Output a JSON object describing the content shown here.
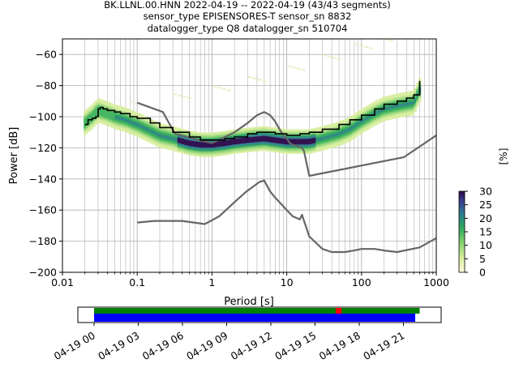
{
  "header": {
    "line1": "BK.LLNL.00.HNN   2022-04-19 -- 2022-04-19  (43/43 segments)",
    "line2": "sensor_type EPISENSORES-T sensor_sn 8832",
    "line3": "datalogger_type Q8 datalogger_sn 510704"
  },
  "colors": {
    "median": "#000000",
    "noise_models": "#666666",
    "availability_data": "#0000ff",
    "availability_ok": "#008000",
    "availability_gap": "#ff0000"
  },
  "chart_data": [
    {
      "type": "heatmap",
      "xlabel": "Period [s]",
      "ylabel": "Power [dB]",
      "x_scale": "log",
      "xlim": [
        0.01,
        1000
      ],
      "ylim": [
        -200,
        -50
      ],
      "x_ticks": [
        "0.01",
        "0.1",
        "1",
        "10",
        "100",
        "1000"
      ],
      "y_ticks": [
        "−200",
        "−180",
        "−160",
        "−140",
        "−120",
        "−100",
        "−80",
        "−60"
      ],
      "grid": true,
      "colorbar": {
        "label": "[%]",
        "range": [
          0,
          30
        ],
        "ticks": [
          "0",
          "5",
          "10",
          "15",
          "20",
          "25",
          "30"
        ],
        "colormap": "light-yellow-green-blue-purple"
      },
      "median": {
        "x": [
          0.02,
          0.022,
          0.025,
          0.028,
          0.03,
          0.032,
          0.035,
          0.04,
          0.05,
          0.06,
          0.08,
          0.1,
          0.15,
          0.2,
          0.3,
          0.5,
          0.7,
          1,
          1.5,
          2,
          3,
          4,
          5,
          7,
          10,
          15,
          20,
          30,
          50,
          70,
          100,
          150,
          200,
          300,
          400,
          500,
          600
        ],
        "y": [
          -105,
          -102,
          -101,
          -100,
          -95,
          -94,
          -95,
          -96,
          -97,
          -98,
          -100,
          -101,
          -104,
          -107,
          -110,
          -113,
          -115,
          -115,
          -114,
          -113,
          -111,
          -110,
          -110,
          -111,
          -112,
          -111,
          -110,
          -108,
          -105,
          -102,
          -99,
          -95,
          -92,
          -90,
          -88,
          -86,
          -77
        ]
      },
      "heatmap_ridge": {
        "x": [
          0.02,
          0.025,
          0.03,
          0.04,
          0.05,
          0.07,
          0.1,
          0.15,
          0.2,
          0.3,
          0.5,
          0.7,
          1,
          1.5,
          2,
          3,
          5,
          7,
          10,
          15,
          20,
          30,
          50,
          70,
          100,
          150,
          200,
          300,
          500,
          600
        ],
        "y": [
          -104,
          -100,
          -96,
          -98,
          -100,
          -102,
          -105,
          -109,
          -112,
          -114,
          -117,
          -118,
          -118,
          -117,
          -116,
          -115,
          -114,
          -115,
          -116,
          -116,
          -116,
          -114,
          -111,
          -108,
          -103,
          -98,
          -95,
          -93,
          -91,
          -83
        ]
      },
      "nhnm": {
        "x": [
          0.1,
          0.22,
          0.32,
          0.8,
          1,
          2,
          3,
          4,
          5,
          6,
          7,
          8,
          9,
          10,
          11,
          12,
          14,
          16,
          17,
          20,
          370,
          1000
        ],
        "y": [
          -91,
          -97,
          -111,
          -116,
          -117,
          -110,
          -104,
          -99,
          -97,
          -99,
          -103,
          -108,
          -112,
          -114,
          -117,
          -118,
          -119,
          -120,
          -122,
          -138,
          -126,
          -112
        ]
      },
      "nlnm": {
        "x": [
          0.1,
          0.17,
          0.4,
          0.8,
          1.25,
          2.1,
          2.9,
          4.3,
          5,
          6,
          7,
          10,
          12,
          15,
          16,
          20,
          30,
          40,
          60,
          80,
          100,
          150,
          200,
          300,
          600,
          1000
        ],
        "y": [
          -168,
          -167,
          -167,
          -169,
          -164,
          -154,
          -148,
          -142,
          -141,
          -148,
          -152,
          -160,
          -164,
          -166,
          -163,
          -177,
          -185,
          -187,
          -187,
          -186,
          -185,
          -185,
          -186,
          -187,
          -184,
          -178
        ]
      }
    },
    {
      "type": "timeline",
      "x_ticks": [
        "04-19 00",
        "04-19 03",
        "04-19 06",
        "04-19 09",
        "04-19 12",
        "04-19 15",
        "04-19 18",
        "04-19 21"
      ],
      "data_span_hours": [
        0.0,
        21.8
      ],
      "ok_span_hours": [
        0.0,
        22.1
      ],
      "gap_span_hours": [
        16.4,
        16.8
      ]
    }
  ]
}
